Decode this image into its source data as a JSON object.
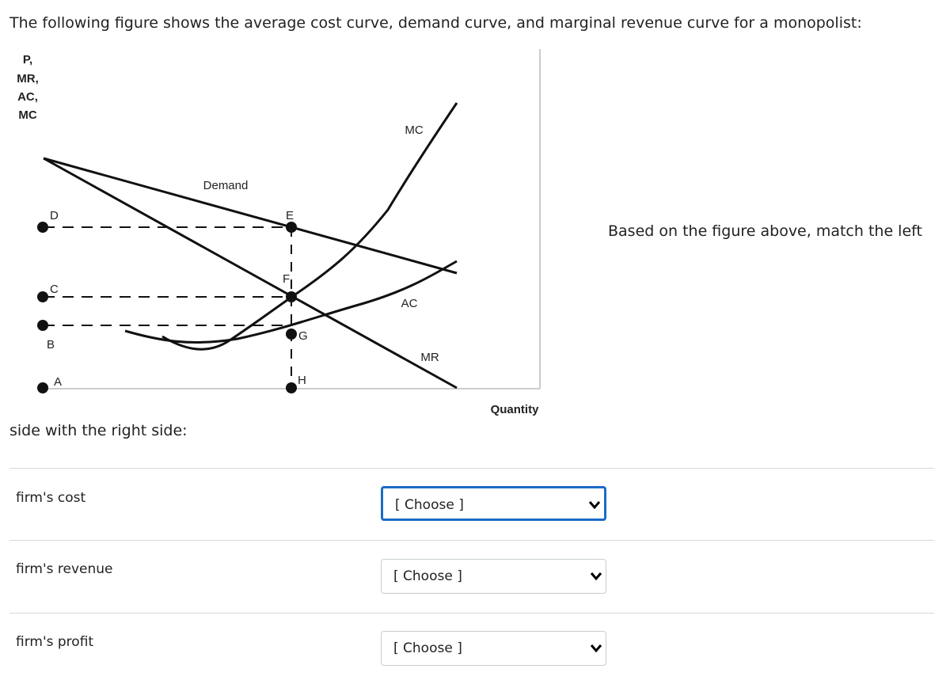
{
  "question": {
    "intro": "The following figure shows the average cost curve, demand curve, and marginal revenue curve for a monopolist:",
    "instruction_start": "Based on the figure above, match the left",
    "instruction_end": "side with the right side:"
  },
  "figure": {
    "y_axis_label": [
      "P,",
      "MR,",
      "AC,",
      "MC"
    ],
    "x_axis_label": "Quantity",
    "curve_labels": [
      "Demand",
      "MC",
      "AC",
      "MR"
    ],
    "point_labels": [
      "D",
      "C",
      "B",
      "A",
      "E",
      "F",
      "G",
      "H"
    ]
  },
  "matches": [
    {
      "label": "firm's cost",
      "choice": "[ Choose ]"
    },
    {
      "label": "firm's revenue",
      "choice": "[ Choose ]"
    },
    {
      "label": "firm's profit",
      "choice": "[ Choose ]"
    }
  ]
}
